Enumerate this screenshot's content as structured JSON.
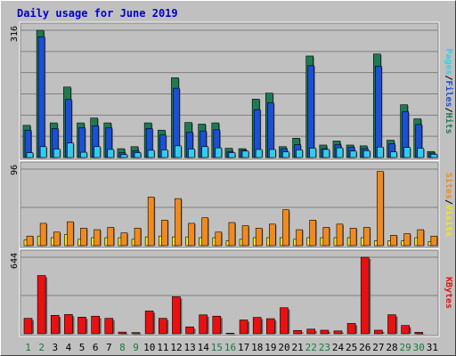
{
  "title": "Daily usage for June 2019",
  "colors": {
    "hits": "#1f7a52",
    "files": "#1a4fd6",
    "pages": "#33ccee",
    "visits": "#f5e51a",
    "sites": "#f08a20",
    "kbytes": "#e81010",
    "weekday": "#000000",
    "weekend": "#1a7a3a"
  },
  "chart_data": [
    {
      "type": "bar",
      "title": "Daily usage for June 2019",
      "categories": [
        "1",
        "2",
        "3",
        "4",
        "5",
        "6",
        "7",
        "8",
        "9",
        "10",
        "11",
        "12",
        "13",
        "14",
        "15",
        "16",
        "17",
        "18",
        "19",
        "20",
        "21",
        "22",
        "23",
        "24",
        "25",
        "26",
        "27",
        "28",
        "29",
        "30",
        "31"
      ],
      "weekend_days": [
        1,
        2,
        8,
        9,
        15,
        16,
        22,
        23,
        29,
        30
      ],
      "ymax_label": "316",
      "ylim": [
        0,
        316
      ],
      "grid": true,
      "series": [
        {
          "name": "Hits",
          "key": "hits",
          "values": [
            80,
            316,
            86,
            175,
            86,
            98,
            86,
            22,
            27,
            86,
            68,
            198,
            87,
            83,
            86,
            23,
            22,
            145,
            160,
            27,
            48,
            252,
            31,
            41,
            31,
            29,
            257,
            43,
            131,
            96,
            15
          ]
        },
        {
          "name": "Files",
          "key": "files",
          "values": [
            68,
            300,
            72,
            144,
            74,
            79,
            74,
            12,
            17,
            72,
            56,
            172,
            63,
            66,
            69,
            15,
            18,
            119,
            136,
            22,
            32,
            228,
            22,
            32,
            25,
            22,
            227,
            34,
            114,
            82,
            11
          ]
        },
        {
          "name": "Pages",
          "key": "pages",
          "values": [
            12,
            27,
            21,
            36,
            13,
            27,
            20,
            7,
            12,
            18,
            19,
            29,
            21,
            27,
            24,
            12,
            16,
            20,
            20,
            14,
            19,
            23,
            20,
            24,
            16,
            17,
            26,
            14,
            25,
            23,
            8
          ]
        }
      ]
    },
    {
      "type": "bar",
      "ymax_label": "96",
      "ylim": [
        0,
        96
      ],
      "grid": true,
      "series": [
        {
          "name": "Visits",
          "key": "visits",
          "values": [
            7,
            12,
            10,
            14,
            8,
            10,
            10,
            10,
            8,
            11,
            12,
            11,
            11,
            10,
            10,
            6,
            8,
            10,
            10,
            10,
            8,
            10,
            10,
            10,
            10,
            10,
            6,
            6,
            6,
            10,
            5
          ]
        },
        {
          "name": "Sites",
          "key": "sites",
          "values": [
            12,
            28,
            17,
            30,
            22,
            20,
            23,
            16,
            22,
            61,
            32,
            59,
            28,
            35,
            17,
            29,
            25,
            22,
            27,
            45,
            20,
            32,
            23,
            27,
            22,
            23,
            93,
            13,
            15,
            20,
            12
          ]
        }
      ]
    },
    {
      "type": "bar",
      "ymax_label": "644",
      "ylim": [
        0,
        644
      ],
      "grid": true,
      "series": [
        {
          "name": "KBytes",
          "key": "kbytes",
          "values": [
            130,
            490,
            155,
            162,
            140,
            148,
            130,
            14,
            10,
            192,
            130,
            312,
            58,
            159,
            148,
            5,
            116,
            138,
            127,
            219,
            28,
            39,
            30,
            24,
            87,
            644,
            30,
            160,
            70,
            12,
            0
          ]
        }
      ]
    }
  ],
  "right_labels": {
    "top": [
      {
        "text": "Pages",
        "key": "pages"
      },
      {
        "text": "/",
        "key": "weekday"
      },
      {
        "text": "Files",
        "key": "files"
      },
      {
        "text": "/",
        "key": "weekday"
      },
      {
        "text": "Hits",
        "key": "hits"
      }
    ],
    "middle": [
      {
        "text": "Sites",
        "key": "sites"
      },
      {
        "text": "/",
        "key": "weekday"
      },
      {
        "text": "Visits",
        "key": "visits"
      }
    ],
    "bottom": [
      {
        "text": "KBytes",
        "key": "kbytes"
      }
    ]
  }
}
